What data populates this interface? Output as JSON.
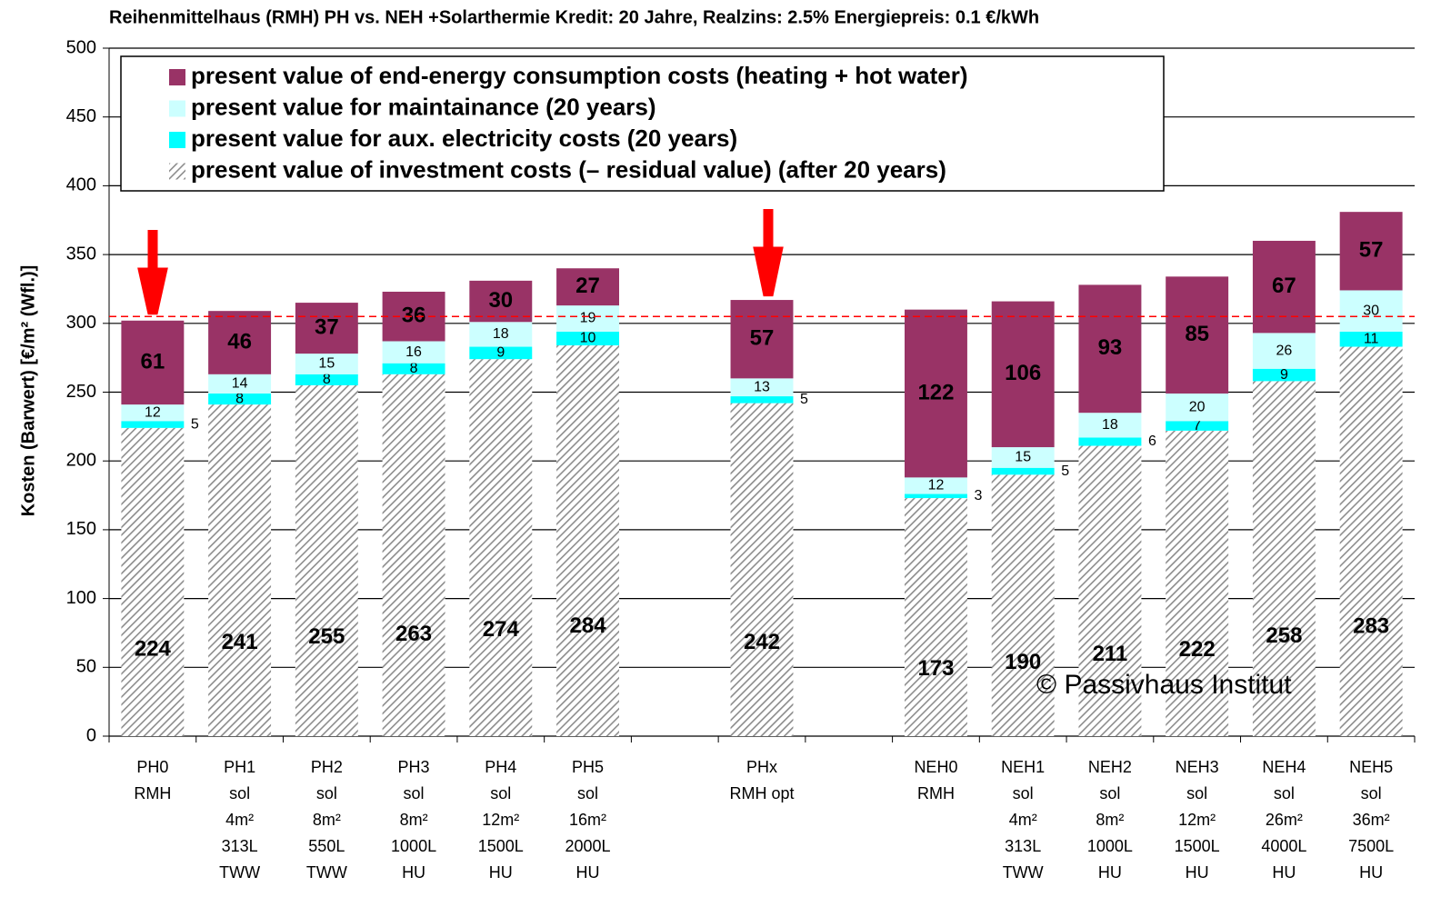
{
  "chart_data": {
    "type": "stacked_bar",
    "title": "Reihenmittelhaus (RMH)    PH vs. NEH +Solarthermie   Kredit: 20 Jahre,  Realzins: 2.5%  Energiepreis: 0.1 €/kWh",
    "y_label": "Kosten (Barwert)  [€/m² (Wfl.)]",
    "annotation": "© Passivhaus Institut",
    "categories": [
      "PH0\nRMH",
      "PH1\nsol\n4m²\n313L\nTWW",
      "PH2\nsol\n8m²\n550L\nTWW",
      "PH3\nsol\n8m²\n1000L\nHU",
      "PH4\nsol\n12m²\n1500L\nHU",
      "PH5\nsol\n16m²\n2000L\nHU",
      null,
      "PHx\nRMH opt",
      null,
      "NEH0\nRMH",
      "NEH1\nsol\n4m²\n313L\nTWW",
      "NEH2\nsol\n8m²\n1000L\nHU",
      "NEH3\nsol\n12m²\n1500L\nHU",
      "NEH4\nsol\n26m²\n4000L\nHU",
      "NEH5\nsol\n36m²\n7500L\nHU"
    ],
    "series": [
      {
        "name": "present value of investment costs (– residual value)  (after 20 years)",
        "color": "#8c8c8c",
        "hatch": true,
        "values": [
          224,
          241,
          255,
          263,
          274,
          284,
          null,
          242,
          null,
          173,
          190,
          211,
          222,
          258,
          283
        ]
      },
      {
        "name": "present value for aux. electricity costs (20 years)",
        "color": "#00ffff",
        "values": [
          5,
          8,
          8,
          8,
          9,
          10,
          null,
          5,
          null,
          3,
          5,
          6,
          7,
          9,
          11
        ]
      },
      {
        "name": "present value for maintainance (20 years)",
        "color": "#ccffff",
        "values": [
          12,
          14,
          15,
          16,
          18,
          19,
          null,
          13,
          null,
          12,
          15,
          18,
          20,
          26,
          30
        ]
      },
      {
        "name": "present value of end-energy consumption costs (heating + hot water)",
        "color": "#993366",
        "values": [
          61,
          46,
          37,
          36,
          30,
          27,
          null,
          57,
          null,
          122,
          106,
          93,
          85,
          67,
          57
        ]
      }
    ],
    "ylim": [
      0,
      500
    ],
    "yticks": [
      0,
      50,
      100,
      150,
      200,
      250,
      300,
      350,
      400,
      450,
      500
    ],
    "grid": true,
    "reference_line": {
      "value": 305,
      "color": "#ff0000"
    }
  }
}
